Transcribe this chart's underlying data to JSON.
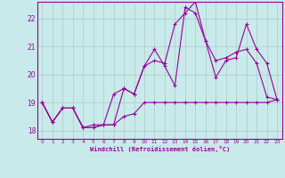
{
  "xlabel": "Windchill (Refroidissement éolien,°C)",
  "bg_color": "#c8eaea",
  "line_color": "#990099",
  "grid_color": "#b0c8c8",
  "ylim": [
    17.7,
    22.6
  ],
  "xlim": [
    -0.5,
    23.5
  ],
  "yticks": [
    18,
    19,
    20,
    21,
    22
  ],
  "xticks": [
    0,
    1,
    2,
    3,
    4,
    5,
    6,
    7,
    8,
    9,
    10,
    11,
    12,
    13,
    14,
    15,
    16,
    17,
    18,
    19,
    20,
    21,
    22,
    23
  ],
  "series": [
    [
      19.0,
      18.3,
      18.8,
      18.8,
      18.1,
      18.1,
      18.2,
      18.2,
      18.5,
      18.6,
      19.0,
      19.0,
      19.0,
      19.0,
      19.0,
      19.0,
      19.0,
      19.0,
      19.0,
      19.0,
      19.0,
      19.0,
      19.0,
      19.1
    ],
    [
      19.0,
      18.3,
      18.8,
      18.8,
      18.1,
      18.2,
      18.2,
      19.3,
      19.5,
      19.3,
      20.3,
      20.5,
      20.4,
      21.8,
      22.2,
      22.6,
      21.2,
      20.5,
      20.6,
      20.8,
      20.9,
      20.4,
      19.2,
      19.1
    ],
    [
      19.0,
      18.3,
      18.8,
      18.8,
      18.1,
      18.1,
      18.2,
      18.2,
      19.5,
      19.3,
      20.3,
      20.9,
      20.3,
      19.6,
      22.4,
      22.2,
      21.2,
      19.9,
      20.5,
      20.6,
      21.8,
      20.9,
      20.4,
      19.1
    ]
  ]
}
